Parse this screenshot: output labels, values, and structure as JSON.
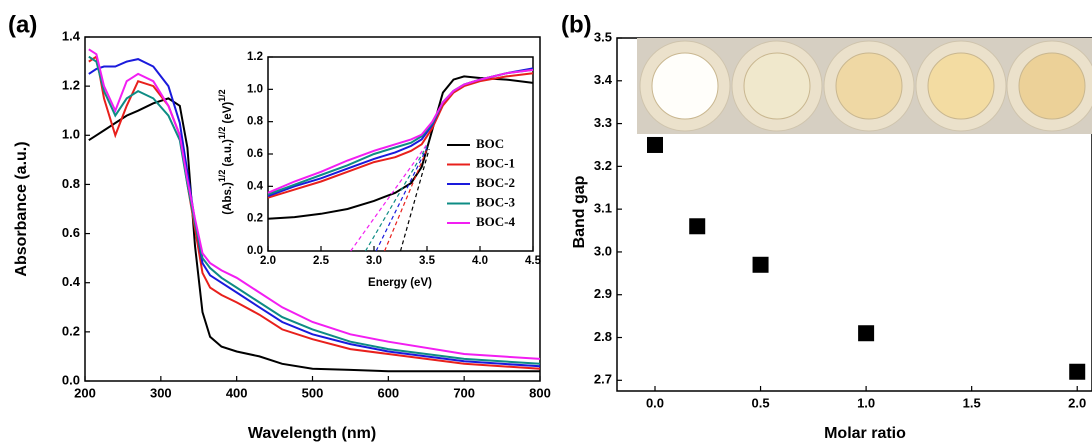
{
  "chart_data": [
    {
      "type": "line",
      "panel_label": "(a)",
      "x_label": "Wavelength (nm)",
      "y_label": "Absorbance (a.u.)",
      "xlim": [
        200,
        800
      ],
      "xticks": [
        200,
        300,
        400,
        500,
        600,
        700,
        800
      ],
      "ylim": [
        0,
        1.4
      ],
      "yticks": [
        {
          "value": 0,
          "label": "0.0"
        },
        0.2,
        0.4,
        0.6,
        0.8,
        {
          "value": 1,
          "label": "1.0"
        },
        1.2,
        1.4
      ],
      "x": [
        205,
        215,
        225,
        240,
        255,
        270,
        290,
        310,
        325,
        335,
        345,
        355,
        365,
        380,
        400,
        430,
        460,
        500,
        550,
        600,
        700,
        800
      ],
      "series": [
        {
          "name": "BOC",
          "color": "#000000",
          "values": [
            0.98,
            1.0,
            1.02,
            1.05,
            1.08,
            1.1,
            1.13,
            1.15,
            1.12,
            0.95,
            0.55,
            0.28,
            0.18,
            0.14,
            0.12,
            0.1,
            0.07,
            0.05,
            0.045,
            0.04,
            0.04,
            0.04
          ]
        },
        {
          "name": "BOC-1",
          "color": "#e8201c",
          "values": [
            1.3,
            1.32,
            1.15,
            1.0,
            1.12,
            1.22,
            1.2,
            1.12,
            1.0,
            0.8,
            0.62,
            0.44,
            0.38,
            0.35,
            0.32,
            0.27,
            0.21,
            0.17,
            0.13,
            0.11,
            0.07,
            0.05
          ]
        },
        {
          "name": "BOC-2",
          "color": "#1a1adc",
          "values": [
            1.25,
            1.27,
            1.28,
            1.28,
            1.3,
            1.31,
            1.28,
            1.2,
            1.05,
            0.85,
            0.65,
            0.48,
            0.43,
            0.4,
            0.36,
            0.3,
            0.24,
            0.19,
            0.15,
            0.12,
            0.08,
            0.06
          ]
        },
        {
          "name": "BOC-3",
          "color": "#0e8c84",
          "values": [
            1.32,
            1.3,
            1.18,
            1.08,
            1.15,
            1.18,
            1.15,
            1.08,
            0.98,
            0.8,
            0.64,
            0.5,
            0.46,
            0.42,
            0.38,
            0.32,
            0.26,
            0.21,
            0.16,
            0.13,
            0.09,
            0.07
          ]
        },
        {
          "name": "BOC-4",
          "color": "#f21ef2",
          "values": [
            1.35,
            1.33,
            1.2,
            1.1,
            1.22,
            1.25,
            1.22,
            1.12,
            1.0,
            0.82,
            0.66,
            0.52,
            0.48,
            0.45,
            0.42,
            0.36,
            0.3,
            0.24,
            0.19,
            0.16,
            0.11,
            0.09
          ]
        }
      ]
    },
    {
      "type": "line",
      "x_label": "Energy (eV)",
      "y_label_parts": [
        "(Abs.)",
        "1/2",
        "(a.u.)",
        "1/2",
        "(eV)",
        "1/2"
      ],
      "xlim": [
        2.0,
        4.5
      ],
      "xticks": [
        {
          "value": 2,
          "label": "2.0"
        },
        2.5,
        {
          "value": 3,
          "label": "3.0"
        },
        3.5,
        {
          "value": 4,
          "label": "4.0"
        },
        4.5
      ],
      "ylim": [
        0,
        1.2
      ],
      "yticks": [
        {
          "value": 0,
          "label": "0.0"
        },
        0.2,
        0.4,
        0.6,
        0.8,
        {
          "value": 1,
          "label": "1.0"
        },
        1.2
      ],
      "x": [
        2.0,
        2.25,
        2.5,
        2.75,
        3.0,
        3.2,
        3.35,
        3.45,
        3.55,
        3.65,
        3.75,
        3.85,
        4.0,
        4.25,
        4.5
      ],
      "series": [
        {
          "name": "BOC",
          "color": "#000000",
          "values": [
            0.2,
            0.21,
            0.23,
            0.26,
            0.31,
            0.36,
            0.42,
            0.52,
            0.75,
            0.98,
            1.06,
            1.08,
            1.07,
            1.06,
            1.04
          ],
          "tangent": {
            "x": [
              3.25,
              3.52
            ],
            "y": [
              0,
              0.63
            ]
          }
        },
        {
          "name": "BOC-1",
          "color": "#e8201c",
          "values": [
            0.33,
            0.38,
            0.43,
            0.49,
            0.55,
            0.58,
            0.62,
            0.66,
            0.76,
            0.9,
            0.98,
            1.02,
            1.05,
            1.08,
            1.1
          ],
          "tangent": {
            "x": [
              3.1,
              3.5
            ],
            "y": [
              0,
              0.63
            ]
          }
        },
        {
          "name": "BOC-2",
          "color": "#1a1adc",
          "values": [
            0.34,
            0.4,
            0.45,
            0.51,
            0.57,
            0.61,
            0.65,
            0.69,
            0.78,
            0.92,
            0.99,
            1.03,
            1.06,
            1.1,
            1.13
          ],
          "tangent": {
            "x": [
              3.02,
              3.5
            ],
            "y": [
              0,
              0.64
            ]
          }
        },
        {
          "name": "BOC-3",
          "color": "#0e8c84",
          "values": [
            0.35,
            0.41,
            0.47,
            0.53,
            0.6,
            0.64,
            0.67,
            0.71,
            0.79,
            0.92,
            0.99,
            1.03,
            1.06,
            1.1,
            1.12
          ],
          "tangent": {
            "x": [
              2.92,
              3.5
            ],
            "y": [
              0,
              0.65
            ]
          }
        },
        {
          "name": "BOC-4",
          "color": "#f21ef2",
          "values": [
            0.36,
            0.43,
            0.49,
            0.56,
            0.62,
            0.66,
            0.69,
            0.72,
            0.8,
            0.92,
            0.99,
            1.03,
            1.06,
            1.1,
            1.12
          ],
          "tangent": {
            "x": [
              2.78,
              3.5
            ],
            "y": [
              0,
              0.66
            ]
          }
        }
      ]
    },
    {
      "type": "scatter",
      "panel_label": "(b)",
      "x_label": "Molar ratio",
      "y_label": "Band gap",
      "xlim": [
        -0.18,
        2.07
      ],
      "xticks": [
        {
          "value": 0,
          "label": "0.0"
        },
        0.5,
        {
          "value": 1,
          "label": "1.0"
        },
        1.5,
        {
          "value": 2,
          "label": "2.0"
        }
      ],
      "ylim": [
        2.675,
        3.5
      ],
      "yticks": [
        2.7,
        2.8,
        2.9,
        {
          "value": 3,
          "label": "3.0"
        },
        3.1,
        3.2,
        3.3,
        3.4,
        3.5
      ],
      "x": [
        0,
        0.2,
        0.5,
        1.0,
        2.0
      ],
      "values": [
        3.25,
        3.06,
        2.97,
        2.81,
        2.72
      ],
      "color": "#000000"
    }
  ]
}
